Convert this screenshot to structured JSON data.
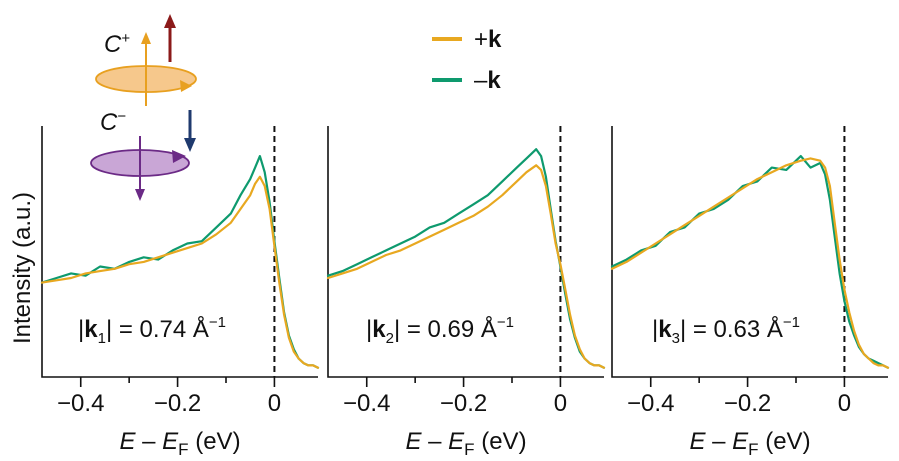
{
  "chart_data": {
    "type": "line",
    "ylabel": "Intensity (a.u.)",
    "xlabel": {
      "italic_e": "E",
      "dash": " – ",
      "italic_ef": "E",
      "sub_f": "F",
      "unit": " (eV)"
    },
    "xlim": [
      -0.48,
      0.09
    ],
    "ylim": [
      0,
      1
    ],
    "xticks": [
      -0.4,
      -0.2,
      0
    ],
    "xtick_labels": [
      "−0.4",
      "−0.2",
      "0"
    ],
    "legend": [
      {
        "name": "+k",
        "sign": "+",
        "bold": "k",
        "color": "#E8A820"
      },
      {
        "name": "−k",
        "sign": "–",
        "bold": "k",
        "color": "#0E9A6E"
      }
    ],
    "polarization": {
      "c_plus": {
        "letter": "C",
        "sup": "+",
        "disk_color": "#F6C88C",
        "arrow_color": "#E8A020",
        "spin_color": "#8B1A1A"
      },
      "c_minus": {
        "letter": "C",
        "sup": "−",
        "disk_color": "#C9A6D6",
        "arrow_color": "#6B2A86",
        "spin_color": "#1F3A6E"
      }
    },
    "panels": [
      {
        "k_label": {
          "bar": "|",
          "bold": "k",
          "sub": "1",
          "rest": "| = 0.74 Å",
          "sup": "−1"
        },
        "series": [
          {
            "name": "+k",
            "x": [
              -0.48,
              -0.45,
              -0.42,
              -0.39,
              -0.36,
              -0.33,
              -0.3,
              -0.27,
              -0.24,
              -0.21,
              -0.18,
              -0.15,
              -0.12,
              -0.09,
              -0.07,
              -0.05,
              -0.04,
              -0.03,
              -0.02,
              -0.01,
              0,
              0.01,
              0.02,
              0.03,
              0.04,
              0.05,
              0.06,
              0.07,
              0.08,
              0.09
            ],
            "y": [
              0.38,
              0.39,
              0.4,
              0.42,
              0.43,
              0.44,
              0.46,
              0.47,
              0.49,
              0.51,
              0.53,
              0.55,
              0.59,
              0.64,
              0.7,
              0.76,
              0.81,
              0.84,
              0.8,
              0.7,
              0.54,
              0.38,
              0.24,
              0.14,
              0.08,
              0.05,
              0.03,
              0.02,
              0.02,
              0.01
            ]
          },
          {
            "name": "−k",
            "x": [
              -0.48,
              -0.45,
              -0.42,
              -0.39,
              -0.36,
              -0.33,
              -0.3,
              -0.27,
              -0.24,
              -0.21,
              -0.18,
              -0.15,
              -0.12,
              -0.09,
              -0.07,
              -0.05,
              -0.04,
              -0.03,
              -0.02,
              -0.01,
              0,
              0.01,
              0.02,
              0.03,
              0.04,
              0.05,
              0.06,
              0.07,
              0.08,
              0.09
            ],
            "y": [
              0.38,
              0.4,
              0.42,
              0.41,
              0.45,
              0.44,
              0.47,
              0.49,
              0.48,
              0.52,
              0.55,
              0.56,
              0.62,
              0.68,
              0.76,
              0.83,
              0.88,
              0.93,
              0.86,
              0.73,
              0.56,
              0.4,
              0.25,
              0.15,
              0.09,
              0.05,
              0.03,
              0.02,
              0.02,
              0.01
            ]
          }
        ]
      },
      {
        "k_label": {
          "bar": "|",
          "bold": "k",
          "sub": "2",
          "rest": "| = 0.69 Å",
          "sup": "−1"
        },
        "series": [
          {
            "name": "+k",
            "x": [
              -0.48,
              -0.45,
              -0.42,
              -0.39,
              -0.36,
              -0.33,
              -0.3,
              -0.27,
              -0.24,
              -0.21,
              -0.18,
              -0.15,
              -0.12,
              -0.09,
              -0.07,
              -0.05,
              -0.04,
              -0.03,
              -0.02,
              -0.01,
              0,
              0.01,
              0.02,
              0.03,
              0.04,
              0.05,
              0.06,
              0.07,
              0.08,
              0.09
            ],
            "y": [
              0.4,
              0.42,
              0.44,
              0.47,
              0.5,
              0.52,
              0.55,
              0.58,
              0.61,
              0.64,
              0.67,
              0.71,
              0.76,
              0.82,
              0.86,
              0.89,
              0.87,
              0.8,
              0.68,
              0.55,
              0.46,
              0.35,
              0.24,
              0.15,
              0.09,
              0.05,
              0.03,
              0.02,
              0.02,
              0.01
            ]
          },
          {
            "name": "−k",
            "x": [
              -0.48,
              -0.45,
              -0.42,
              -0.39,
              -0.36,
              -0.33,
              -0.3,
              -0.27,
              -0.24,
              -0.21,
              -0.18,
              -0.15,
              -0.12,
              -0.09,
              -0.07,
              -0.05,
              -0.04,
              -0.03,
              -0.02,
              -0.01,
              0,
              0.01,
              0.02,
              0.03,
              0.04,
              0.05,
              0.06,
              0.07,
              0.08,
              0.09
            ],
            "y": [
              0.41,
              0.43,
              0.46,
              0.49,
              0.52,
              0.55,
              0.58,
              0.62,
              0.64,
              0.68,
              0.72,
              0.76,
              0.82,
              0.88,
              0.92,
              0.96,
              0.93,
              0.84,
              0.7,
              0.56,
              0.45,
              0.33,
              0.22,
              0.14,
              0.08,
              0.05,
              0.03,
              0.02,
              0.02,
              0.01
            ]
          }
        ]
      },
      {
        "k_label": {
          "bar": "|",
          "bold": "k",
          "sub": "3",
          "rest": "| = 0.63 Å",
          "sup": "−1"
        },
        "series": [
          {
            "name": "+k",
            "x": [
              -0.48,
              -0.45,
              -0.42,
              -0.39,
              -0.36,
              -0.33,
              -0.3,
              -0.27,
              -0.24,
              -0.21,
              -0.18,
              -0.15,
              -0.12,
              -0.09,
              -0.07,
              -0.05,
              -0.04,
              -0.03,
              -0.02,
              -0.01,
              0,
              0.01,
              0.02,
              0.03,
              0.04,
              0.05,
              0.06,
              0.07,
              0.08,
              0.09
            ],
            "y": [
              0.44,
              0.47,
              0.51,
              0.55,
              0.59,
              0.63,
              0.67,
              0.71,
              0.75,
              0.79,
              0.83,
              0.86,
              0.89,
              0.91,
              0.92,
              0.91,
              0.88,
              0.8,
              0.64,
              0.48,
              0.35,
              0.25,
              0.17,
              0.11,
              0.07,
              0.05,
              0.03,
              0.02,
              0.02,
              0.01
            ]
          },
          {
            "name": "−k",
            "x": [
              -0.48,
              -0.45,
              -0.42,
              -0.39,
              -0.36,
              -0.33,
              -0.3,
              -0.27,
              -0.24,
              -0.21,
              -0.18,
              -0.15,
              -0.12,
              -0.09,
              -0.07,
              -0.05,
              -0.04,
              -0.03,
              -0.02,
              -0.01,
              0,
              0.01,
              0.02,
              0.03,
              0.04,
              0.05,
              0.06,
              0.07,
              0.08,
              0.09
            ],
            "y": [
              0.45,
              0.48,
              0.52,
              0.54,
              0.6,
              0.62,
              0.68,
              0.7,
              0.74,
              0.8,
              0.82,
              0.88,
              0.87,
              0.93,
              0.88,
              0.9,
              0.85,
              0.74,
              0.58,
              0.42,
              0.3,
              0.21,
              0.15,
              0.1,
              0.07,
              0.05,
              0.04,
              0.03,
              0.02,
              0.01
            ]
          }
        ]
      }
    ]
  }
}
